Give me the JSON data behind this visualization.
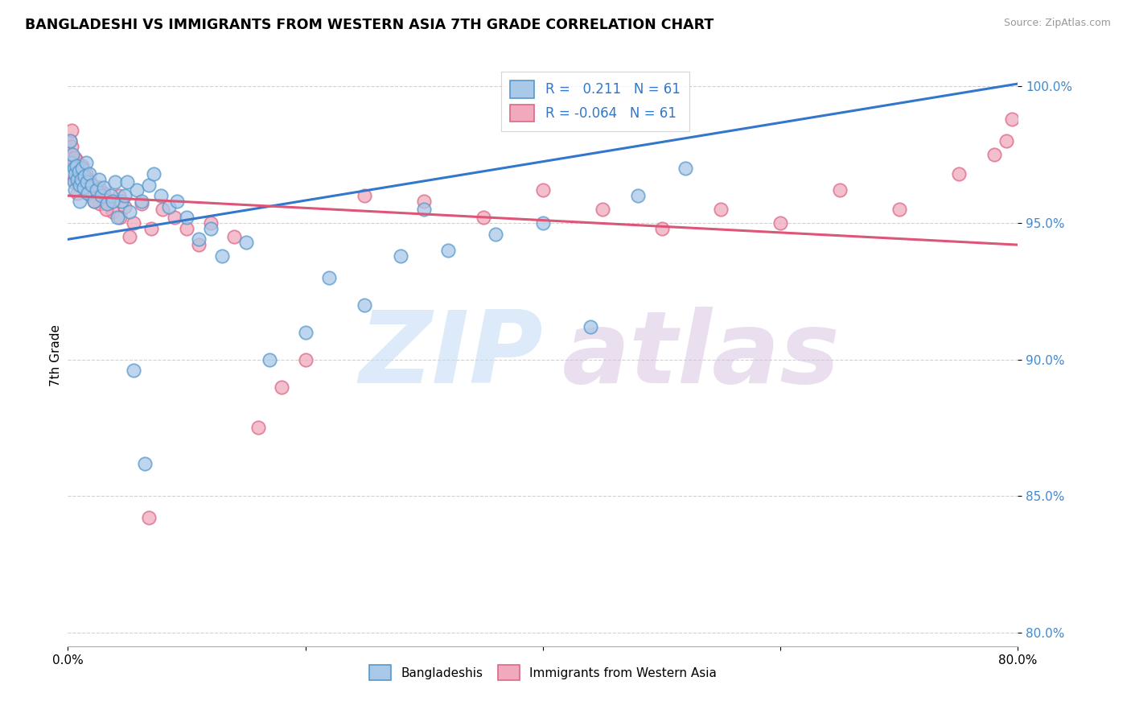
{
  "title": "BANGLADESHI VS IMMIGRANTS FROM WESTERN ASIA 7TH GRADE CORRELATION CHART",
  "source": "Source: ZipAtlas.com",
  "ylabel": "7th Grade",
  "xlim": [
    0.0,
    0.8
  ],
  "ylim": [
    0.795,
    1.008
  ],
  "R_blue": 0.211,
  "N_blue": 61,
  "R_pink": -0.064,
  "N_pink": 61,
  "blue_face": "#aac8e8",
  "blue_edge": "#5599cc",
  "pink_face": "#f0aabc",
  "pink_edge": "#dd6688",
  "line_blue_color": "#3377cc",
  "line_pink_color": "#dd5577",
  "legend_blue_label": "Bangladeshis",
  "legend_pink_label": "Immigrants from Western Asia",
  "blue_line_y0": 0.944,
  "blue_line_y1": 1.001,
  "pink_line_y0": 0.96,
  "pink_line_y1": 0.942,
  "ytick_color": "#4488cc",
  "blue_x": [
    0.002,
    0.003,
    0.004,
    0.005,
    0.005,
    0.006,
    0.006,
    0.007,
    0.008,
    0.009,
    0.01,
    0.01,
    0.011,
    0.012,
    0.013,
    0.014,
    0.015,
    0.016,
    0.017,
    0.018,
    0.02,
    0.022,
    0.024,
    0.026,
    0.028,
    0.03,
    0.033,
    0.036,
    0.04,
    0.045,
    0.048,
    0.052,
    0.058,
    0.062,
    0.068,
    0.072,
    0.078,
    0.085,
    0.092,
    0.1,
    0.11,
    0.12,
    0.13,
    0.15,
    0.17,
    0.2,
    0.22,
    0.25,
    0.28,
    0.32,
    0.36,
    0.4,
    0.44,
    0.48,
    0.52,
    0.3,
    0.055,
    0.065,
    0.038,
    0.042,
    0.05
  ],
  "blue_y": [
    0.98,
    0.972,
    0.975,
    0.97,
    0.965,
    0.968,
    0.962,
    0.971,
    0.966,
    0.969,
    0.964,
    0.958,
    0.966,
    0.97,
    0.963,
    0.967,
    0.972,
    0.965,
    0.961,
    0.968,
    0.964,
    0.958,
    0.962,
    0.966,
    0.96,
    0.963,
    0.957,
    0.96,
    0.965,
    0.958,
    0.96,
    0.954,
    0.962,
    0.958,
    0.964,
    0.968,
    0.96,
    0.956,
    0.958,
    0.952,
    0.944,
    0.948,
    0.938,
    0.943,
    0.9,
    0.91,
    0.93,
    0.92,
    0.938,
    0.94,
    0.946,
    0.95,
    0.912,
    0.96,
    0.97,
    0.955,
    0.896,
    0.862,
    0.958,
    0.952,
    0.965
  ],
  "pink_x": [
    0.001,
    0.002,
    0.003,
    0.004,
    0.005,
    0.005,
    0.006,
    0.007,
    0.008,
    0.009,
    0.01,
    0.011,
    0.012,
    0.013,
    0.015,
    0.016,
    0.017,
    0.019,
    0.021,
    0.024,
    0.027,
    0.03,
    0.034,
    0.038,
    0.043,
    0.048,
    0.055,
    0.062,
    0.07,
    0.08,
    0.09,
    0.1,
    0.11,
    0.12,
    0.14,
    0.16,
    0.18,
    0.2,
    0.25,
    0.3,
    0.35,
    0.4,
    0.45,
    0.5,
    0.55,
    0.6,
    0.65,
    0.7,
    0.75,
    0.78,
    0.79,
    0.795,
    0.022,
    0.026,
    0.032,
    0.044,
    0.052,
    0.068,
    0.008,
    0.006,
    0.003
  ],
  "pink_y": [
    0.976,
    0.98,
    0.978,
    0.974,
    0.972,
    0.966,
    0.97,
    0.973,
    0.965,
    0.971,
    0.968,
    0.965,
    0.971,
    0.963,
    0.968,
    0.966,
    0.961,
    0.965,
    0.96,
    0.963,
    0.957,
    0.961,
    0.958,
    0.954,
    0.96,
    0.956,
    0.95,
    0.957,
    0.948,
    0.955,
    0.952,
    0.948,
    0.942,
    0.95,
    0.945,
    0.875,
    0.89,
    0.9,
    0.96,
    0.958,
    0.952,
    0.962,
    0.955,
    0.948,
    0.955,
    0.95,
    0.962,
    0.955,
    0.968,
    0.975,
    0.98,
    0.988,
    0.958,
    0.963,
    0.955,
    0.952,
    0.945,
    0.842,
    0.961,
    0.974,
    0.984
  ]
}
